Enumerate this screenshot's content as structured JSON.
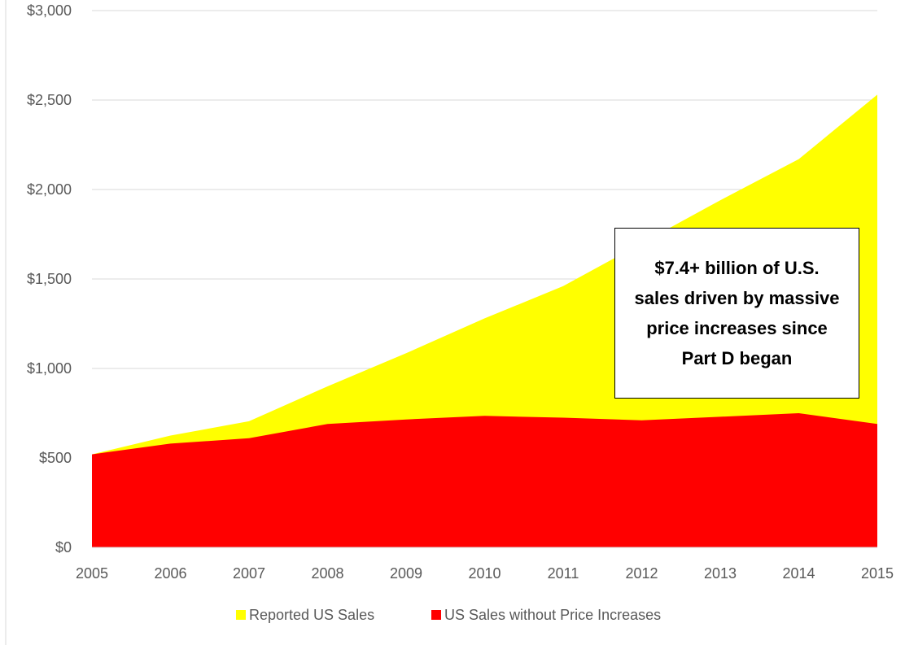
{
  "chart_data": {
    "type": "area",
    "stacked": false,
    "x": [
      2005,
      2006,
      2007,
      2008,
      2009,
      2010,
      2011,
      2012,
      2013,
      2014,
      2015
    ],
    "series": [
      {
        "name": "Reported US Sales",
        "color": "#ffff00",
        "values": [
          520,
          625,
          705,
          900,
          1085,
          1280,
          1460,
          1700,
          1940,
          2170,
          2530
        ]
      },
      {
        "name": "US Sales without Price Increases",
        "color": "#ff0000",
        "values": [
          520,
          580,
          610,
          690,
          715,
          735,
          725,
          710,
          730,
          750,
          690
        ]
      }
    ],
    "ylim": [
      0,
      3000
    ],
    "yticks": [
      0,
      500,
      1000,
      1500,
      2000,
      2500,
      3000
    ],
    "ytick_labels": [
      "$0",
      "$500",
      "$1,000",
      "$1,500",
      "$2,000",
      "$2,500",
      "$3,000"
    ],
    "xtick_labels": [
      "2005",
      "2006",
      "2007",
      "2008",
      "2009",
      "2010",
      "2011",
      "2012",
      "2013",
      "2014",
      "2015"
    ],
    "grid": true,
    "legend_position": "bottom",
    "title": "",
    "xlabel": "",
    "ylabel": "",
    "annotation": "$7.4+ billion of U.S. sales driven by massive price increases since Part D began"
  }
}
